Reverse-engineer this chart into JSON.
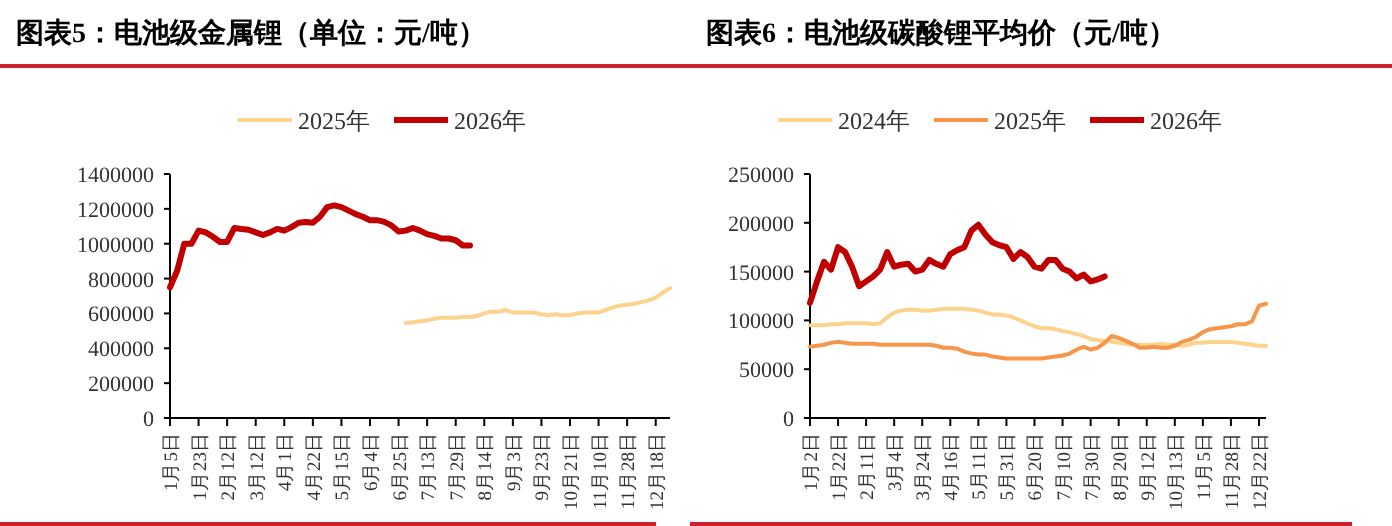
{
  "chart_data": [
    {
      "type": "line",
      "title": "图表5：电池级金属锂（单位：元/吨）",
      "categories": [
        "1月5日",
        null,
        null,
        null,
        "1月23日",
        null,
        null,
        null,
        "2月12日",
        null,
        null,
        null,
        "3月12日",
        null,
        null,
        null,
        "4月1日",
        null,
        null,
        null,
        "4月22日",
        null,
        null,
        null,
        "5月15日",
        null,
        null,
        null,
        "6月4日",
        null,
        null,
        null,
        "6月25日",
        null,
        null,
        null,
        "7月13日",
        null,
        null,
        null,
        "7月29日",
        null,
        null,
        null,
        "8月14日",
        null,
        null,
        null,
        "9月3日",
        null,
        null,
        null,
        "9月23日",
        null,
        null,
        null,
        "10月21日",
        null,
        null,
        null,
        "11月10日",
        null,
        null,
        null,
        "11月28日",
        null,
        null,
        null,
        "12月18日",
        null,
        null
      ],
      "series": [
        {
          "name": "2025年",
          "color": "#fbd38d",
          "values": [
            null,
            null,
            null,
            null,
            null,
            null,
            null,
            null,
            null,
            null,
            null,
            null,
            null,
            null,
            null,
            null,
            null,
            null,
            null,
            null,
            null,
            null,
            null,
            null,
            null,
            null,
            null,
            null,
            null,
            null,
            null,
            null,
            null,
            545000,
            550000,
            555000,
            560000,
            570000,
            575000,
            575000,
            575000,
            580000,
            580000,
            585000,
            600000,
            610000,
            610000,
            620000,
            605000,
            605000,
            605000,
            605000,
            595000,
            590000,
            595000,
            590000,
            590000,
            600000,
            605000,
            605000,
            605000,
            620000,
            635000,
            645000,
            650000,
            655000,
            665000,
            675000,
            690000,
            720000,
            745000
          ]
        },
        {
          "name": "2026年",
          "color": "#c00000",
          "values": [
            750000,
            845000,
            1000000,
            1000000,
            1075000,
            1065000,
            1040000,
            1010000,
            1010000,
            1090000,
            1085000,
            1080000,
            1065000,
            1050000,
            1065000,
            1085000,
            1075000,
            1095000,
            1120000,
            1125000,
            1120000,
            1155000,
            1210000,
            1220000,
            1210000,
            1190000,
            1170000,
            1155000,
            1135000,
            1135000,
            1125000,
            1105000,
            1070000,
            1075000,
            1090000,
            1075000,
            1055000,
            1045000,
            1030000,
            1030000,
            1020000,
            990000,
            990000,
            null,
            null,
            null,
            null,
            null,
            null,
            null,
            null,
            null,
            null,
            null,
            null,
            null,
            null,
            null,
            null,
            null,
            null,
            null,
            null,
            null,
            null,
            null,
            null,
            null,
            null,
            null,
            null
          ]
        }
      ],
      "ylim": [
        0,
        1400000
      ],
      "yticks": [
        0,
        200000,
        400000,
        600000,
        800000,
        1000000,
        1200000,
        1400000
      ],
      "legend": "top"
    },
    {
      "type": "line",
      "title": "图表6：电池级碳酸锂平均价（元/吨）",
      "categories": [
        "1月2日",
        null,
        null,
        null,
        "1月22日",
        null,
        null,
        null,
        "2月11日",
        null,
        null,
        null,
        "3月4日",
        null,
        null,
        null,
        "3月24日",
        null,
        null,
        null,
        "4月16日",
        null,
        null,
        null,
        "5月11日",
        null,
        null,
        null,
        "5月31日",
        null,
        null,
        null,
        "6月20日",
        null,
        null,
        null,
        "7月10日",
        null,
        null,
        null,
        "7月30日",
        null,
        null,
        null,
        "8月20日",
        null,
        null,
        null,
        "9月12日",
        null,
        null,
        null,
        "10月13日",
        null,
        null,
        null,
        "11月5日",
        null,
        null,
        null,
        "11月28日",
        null,
        null,
        null,
        "12月22日",
        null
      ],
      "series": [
        {
          "name": "2024年",
          "color": "#fbd38d",
          "values": [
            95000,
            95000,
            95000,
            96000,
            96000,
            97000,
            97000,
            97000,
            97000,
            96000,
            97000,
            103000,
            108000,
            110000,
            111000,
            111000,
            110000,
            110000,
            111000,
            112000,
            112000,
            112000,
            112000,
            111000,
            110000,
            108000,
            106000,
            106000,
            105000,
            103000,
            100000,
            97000,
            94000,
            92000,
            92000,
            91000,
            89000,
            88000,
            86000,
            84000,
            81000,
            80000,
            79000,
            78000,
            77000,
            76000,
            75000,
            75000,
            75000,
            75000,
            76000,
            75000,
            75000,
            74000,
            75000,
            77000,
            77000,
            78000,
            78000,
            78000,
            78000,
            77000,
            76000,
            75000,
            74000,
            74000
          ]
        },
        {
          "name": "2025年",
          "color": "#f5964a",
          "values": [
            73000,
            74000,
            75000,
            77000,
            78000,
            77000,
            76000,
            76000,
            76000,
            76000,
            75000,
            75000,
            75000,
            75000,
            75000,
            75000,
            75000,
            75000,
            74000,
            72000,
            72000,
            71000,
            68000,
            66000,
            65000,
            65000,
            63000,
            62000,
            61000,
            61000,
            61000,
            61000,
            61000,
            61000,
            62000,
            63000,
            64000,
            66000,
            70000,
            73000,
            70000,
            72000,
            77000,
            84000,
            82000,
            79000,
            76000,
            72000,
            72000,
            73000,
            72000,
            72000,
            74000,
            78000,
            80000,
            83000,
            88000,
            91000,
            92000,
            93000,
            94000,
            96000,
            96000,
            99000,
            115000,
            117000
          ]
        },
        {
          "name": "2026年",
          "color": "#c00000",
          "values": [
            118000,
            140000,
            160000,
            152000,
            175000,
            170000,
            155000,
            135000,
            140000,
            145000,
            152000,
            170000,
            155000,
            157000,
            158000,
            150000,
            152000,
            162000,
            158000,
            155000,
            168000,
            172000,
            175000,
            192000,
            198000,
            188000,
            180000,
            177000,
            175000,
            163000,
            170000,
            165000,
            155000,
            153000,
            162000,
            162000,
            153000,
            150000,
            143000,
            147000,
            140000,
            142000,
            145000,
            null,
            null,
            null,
            null,
            null,
            null,
            null,
            null,
            null,
            null,
            null,
            null,
            null,
            null,
            null,
            null,
            null,
            null,
            null,
            null,
            null,
            null,
            null
          ]
        }
      ],
      "ylim": [
        0,
        250000
      ],
      "yticks": [
        0,
        50000,
        100000,
        150000,
        200000,
        250000
      ],
      "legend": "top"
    }
  ]
}
